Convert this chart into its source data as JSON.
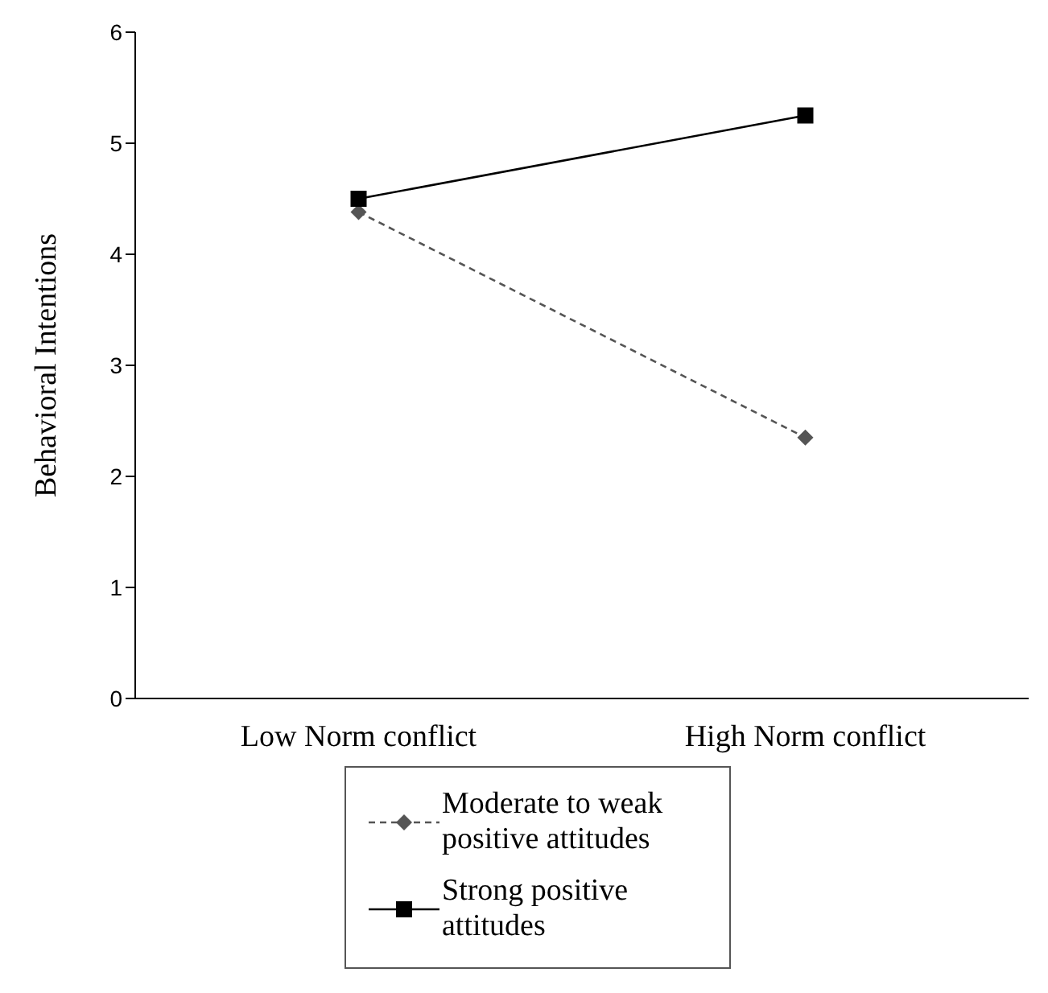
{
  "chart_data": {
    "type": "line",
    "ylabel": "Behavioral  Intentions",
    "categories": [
      "Low Norm conflict",
      "High Norm conflict"
    ],
    "series": [
      {
        "name": "Moderate to weak positive attitudes",
        "color": "#555555",
        "values": [
          4.38,
          2.35
        ],
        "marker": "diamond",
        "line_style": "dashed"
      },
      {
        "name": "Strong positive attitudes",
        "color": "#000000",
        "values": [
          4.5,
          5.25
        ],
        "marker": "square",
        "line_style": "solid"
      }
    ],
    "ylim": [
      0,
      6
    ],
    "yticks": [
      0,
      1,
      2,
      3,
      4,
      5,
      6
    ],
    "legend": "bottom"
  }
}
